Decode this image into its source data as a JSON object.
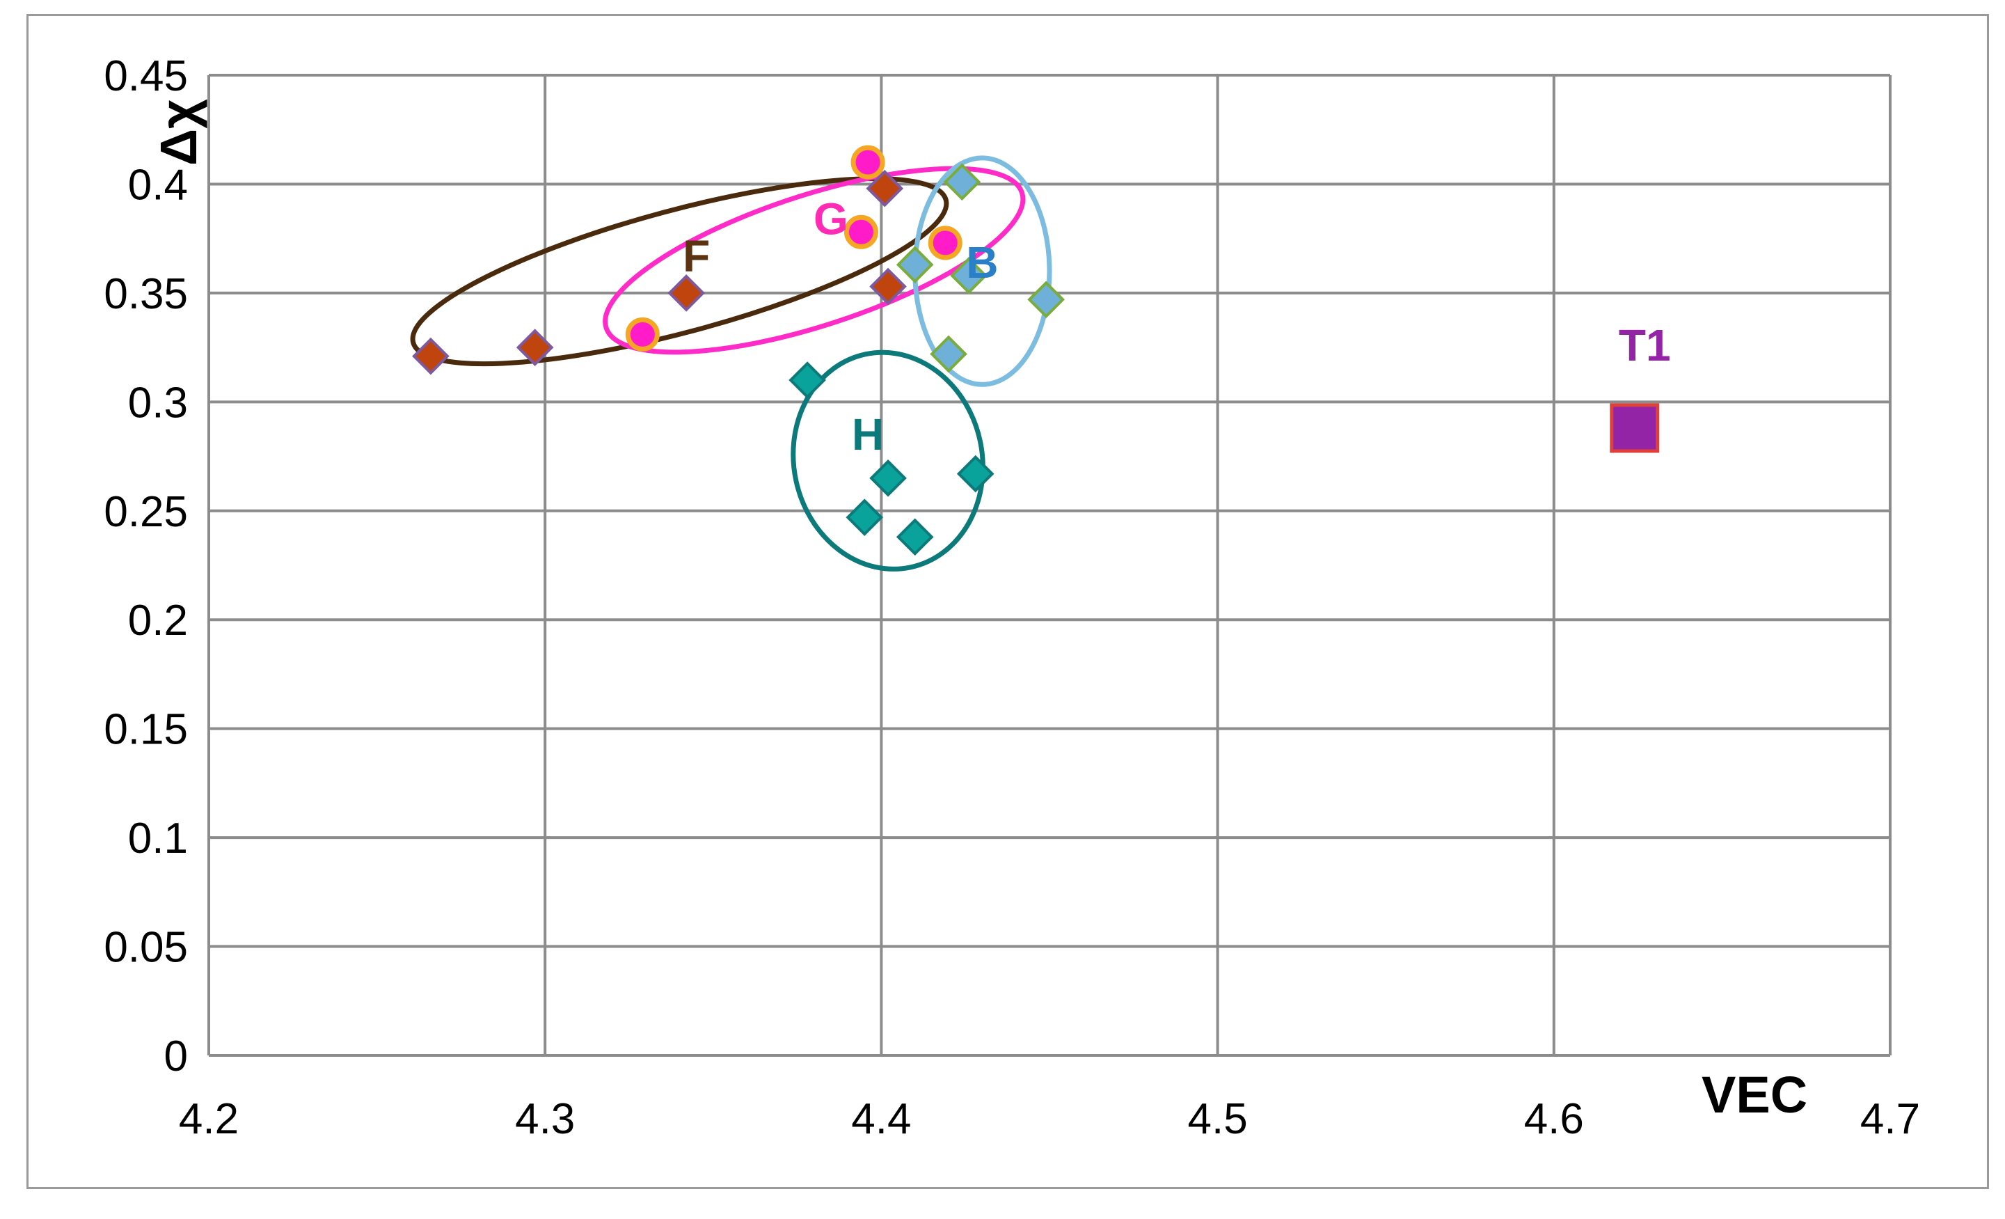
{
  "chart_data": {
    "type": "scatter",
    "xlabel": "VEC",
    "ylabel": "Δχ",
    "xlim": [
      4.2,
      4.7
    ],
    "ylim": [
      0,
      0.45
    ],
    "x_ticks": [
      "4.2",
      "4.3",
      "4.4",
      "4.5",
      "4.6",
      "4.7"
    ],
    "y_ticks": [
      "0",
      "0.05",
      "0.1",
      "0.15",
      "0.2",
      "0.25",
      "0.3",
      "0.35",
      "0.4",
      "0.45"
    ],
    "grid": true,
    "series": [
      {
        "marker": "diamond",
        "fill": "#c0440e",
        "stroke": "#7d5aa0",
        "points": [
          [
            4.266,
            0.321
          ],
          [
            4.297,
            0.325
          ],
          [
            4.342,
            0.35
          ],
          [
            4.401,
            0.398
          ],
          [
            4.402,
            0.353
          ]
        ]
      },
      {
        "marker": "circle",
        "fill": "#ff1cc8",
        "stroke": "#f5a623",
        "points": [
          [
            4.329,
            0.331
          ],
          [
            4.394,
            0.378
          ],
          [
            4.396,
            0.41
          ],
          [
            4.419,
            0.373
          ]
        ]
      },
      {
        "marker": "diamond",
        "fill": "#6fb0d8",
        "stroke": "#7aac3c",
        "points": [
          [
            4.41,
            0.363
          ],
          [
            4.42,
            0.322
          ],
          [
            4.424,
            0.401
          ],
          [
            4.426,
            0.358
          ],
          [
            4.449,
            0.347
          ]
        ]
      },
      {
        "marker": "diamond",
        "fill": "#0aa39b",
        "stroke": "#0c7a7a",
        "points": [
          [
            4.378,
            0.31
          ],
          [
            4.395,
            0.247
          ],
          [
            4.402,
            0.265
          ],
          [
            4.41,
            0.238
          ],
          [
            4.428,
            0.267
          ]
        ]
      },
      {
        "marker": "square",
        "fill": "#9324a6",
        "stroke": "#e0403a",
        "points": [
          [
            4.624,
            0.288
          ]
        ]
      }
    ],
    "cluster_labels": [
      {
        "text": "F",
        "color": "#5c3311",
        "x": 4.345,
        "y": 0.36
      },
      {
        "text": "G",
        "color": "#ff2bb5",
        "x": 4.385,
        "y": 0.377
      },
      {
        "text": "B",
        "color": "#2a7fc9",
        "x": 4.43,
        "y": 0.357
      },
      {
        "text": "H",
        "color": "#0c7a7a",
        "x": 4.396,
        "y": 0.278
      },
      {
        "text": "T1",
        "color": "#9324a6",
        "x": 4.627,
        "y": 0.319
      }
    ],
    "ellipses": [
      {
        "name": "F",
        "color": "#4a2a0c",
        "cx": 4.34,
        "cy": 0.36,
        "rx": 0.082,
        "ry": 0.028,
        "angle_deg": -15
      },
      {
        "name": "G",
        "color": "#ff2bc9",
        "cx": 4.38,
        "cy": 0.365,
        "rx": 0.065,
        "ry": 0.03,
        "angle_deg": -18
      },
      {
        "name": "B",
        "color": "#7cbce0",
        "cx": 4.43,
        "cy": 0.36,
        "rx": 0.02,
        "ry": 0.052,
        "angle_deg": 0
      },
      {
        "name": "H",
        "color": "#0c7a7a",
        "cx": 4.402,
        "cy": 0.273,
        "rx": 0.028,
        "ry": 0.05,
        "angle_deg": -12
      }
    ]
  }
}
